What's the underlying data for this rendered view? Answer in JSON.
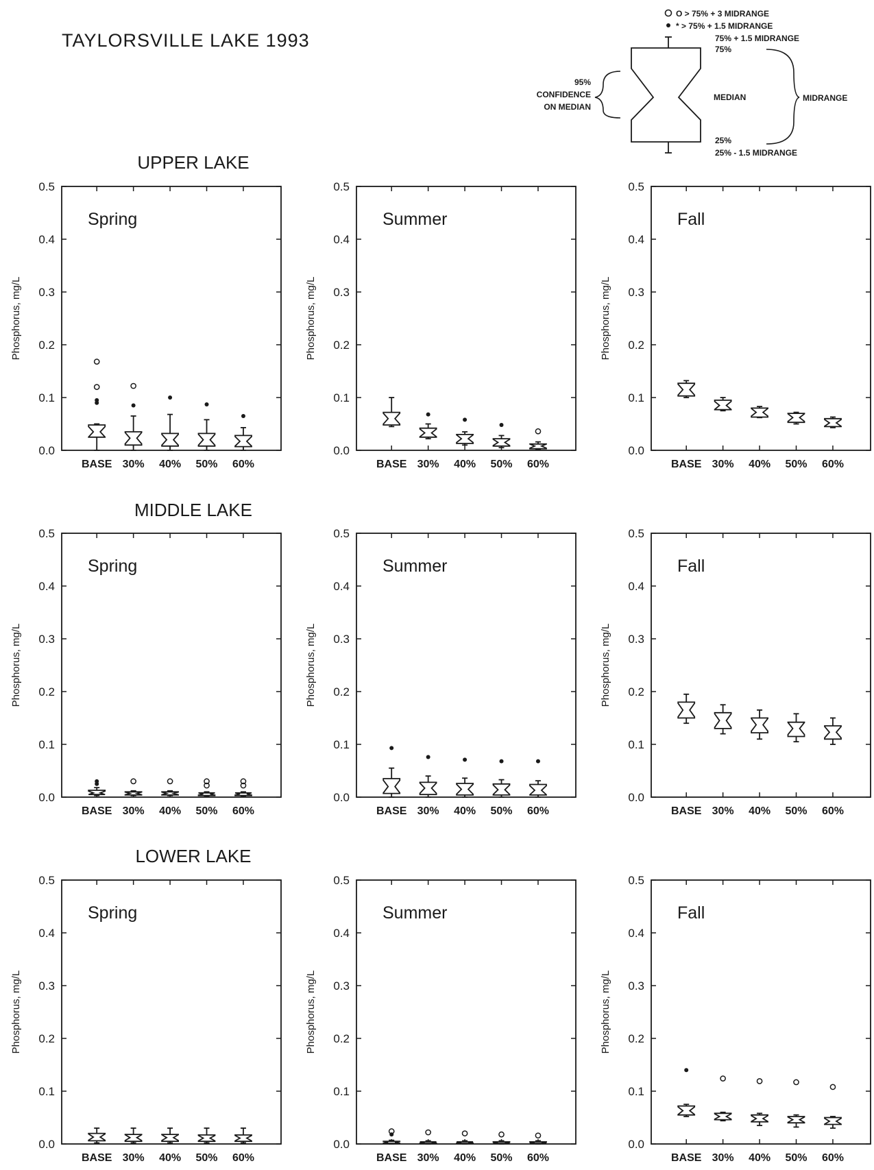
{
  "title": "TAYLORSVILLE LAKE 1993",
  "legend": {
    "outlier_far": "O > 75% + 3 MIDRANGE",
    "outlier_near": "* > 75% + 1.5 MIDRANGE",
    "whisker_top": "75% + 1.5 MIDRANGE",
    "q3": "75%",
    "ci_line1": "95%",
    "ci_line2": "CONFIDENCE",
    "ci_line3": "ON MEDIAN",
    "median": "MEDIAN",
    "midrange": "MIDRANGE",
    "q1": "25%",
    "whisker_bottom": "25% - 1.5 MIDRANGE"
  },
  "sections": [
    "UPPER LAKE",
    "MIDDLE LAKE",
    "LOWER LAKE"
  ],
  "colors": {
    "ink": "#1a1a1a",
    "background": "#ffffff"
  },
  "chart_data": [
    {
      "type": "box",
      "section": "UPPER LAKE",
      "season": "Spring",
      "ylabel": "Phosphorus, mg/L",
      "ylim": [
        0,
        0.5
      ],
      "yticks": [
        "0.0",
        "0.1",
        "0.2",
        "0.3",
        "0.4",
        "0.5"
      ],
      "categories": [
        "BASE",
        "30%",
        "40%",
        "50%",
        "60%"
      ],
      "boxes": [
        {
          "q1": 0.025,
          "median": 0.035,
          "q3": 0.048,
          "wlo": 0.0,
          "whi": 0.05,
          "out_near": [
            0.09,
            0.095
          ],
          "out_far": [
            0.12,
            0.168
          ]
        },
        {
          "q1": 0.01,
          "median": 0.023,
          "q3": 0.035,
          "wlo": 0.0,
          "whi": 0.065,
          "out_near": [
            0.085
          ],
          "out_far": [
            0.122
          ]
        },
        {
          "q1": 0.008,
          "median": 0.02,
          "q3": 0.032,
          "wlo": 0.0,
          "whi": 0.068,
          "out_near": [
            0.1
          ],
          "out_far": []
        },
        {
          "q1": 0.008,
          "median": 0.02,
          "q3": 0.032,
          "wlo": 0.0,
          "whi": 0.058,
          "out_near": [
            0.087
          ],
          "out_far": []
        },
        {
          "q1": 0.007,
          "median": 0.017,
          "q3": 0.028,
          "wlo": 0.0,
          "whi": 0.043,
          "out_near": [
            0.065
          ],
          "out_far": []
        }
      ]
    },
    {
      "type": "box",
      "section": "UPPER LAKE",
      "season": "Summer",
      "ylabel": "Phosphorus, mg/L",
      "ylim": [
        0,
        0.5
      ],
      "yticks": [
        "0.0",
        "0.1",
        "0.2",
        "0.3",
        "0.4",
        "0.5"
      ],
      "categories": [
        "BASE",
        "30%",
        "40%",
        "50%",
        "60%"
      ],
      "boxes": [
        {
          "q1": 0.048,
          "median": 0.06,
          "q3": 0.072,
          "wlo": 0.045,
          "whi": 0.1,
          "out_near": [],
          "out_far": []
        },
        {
          "q1": 0.025,
          "median": 0.033,
          "q3": 0.042,
          "wlo": 0.022,
          "whi": 0.05,
          "out_near": [
            0.068
          ],
          "out_far": []
        },
        {
          "q1": 0.013,
          "median": 0.022,
          "q3": 0.03,
          "wlo": 0.01,
          "whi": 0.035,
          "out_near": [
            0.058
          ],
          "out_far": []
        },
        {
          "q1": 0.008,
          "median": 0.015,
          "q3": 0.022,
          "wlo": 0.005,
          "whi": 0.028,
          "out_near": [
            0.048
          ],
          "out_far": []
        },
        {
          "q1": 0.003,
          "median": 0.008,
          "q3": 0.012,
          "wlo": 0.001,
          "whi": 0.016,
          "out_near": [],
          "out_far": [
            0.036
          ]
        }
      ]
    },
    {
      "type": "box",
      "section": "UPPER LAKE",
      "season": "Fall",
      "ylabel": "Phosphorus, mg/L",
      "ylim": [
        0,
        0.5
      ],
      "yticks": [
        "0.0",
        "0.1",
        "0.2",
        "0.3",
        "0.4",
        "0.5"
      ],
      "categories": [
        "BASE",
        "30%",
        "40%",
        "50%",
        "60%"
      ],
      "boxes": [
        {
          "q1": 0.103,
          "median": 0.115,
          "q3": 0.127,
          "wlo": 0.1,
          "whi": 0.132,
          "out_near": [],
          "out_far": []
        },
        {
          "q1": 0.077,
          "median": 0.085,
          "q3": 0.095,
          "wlo": 0.075,
          "whi": 0.1,
          "out_near": [],
          "out_far": []
        },
        {
          "q1": 0.063,
          "median": 0.072,
          "q3": 0.08,
          "wlo": 0.062,
          "whi": 0.083,
          "out_near": [],
          "out_far": []
        },
        {
          "q1": 0.053,
          "median": 0.062,
          "q3": 0.07,
          "wlo": 0.05,
          "whi": 0.072,
          "out_near": [],
          "out_far": []
        },
        {
          "q1": 0.045,
          "median": 0.052,
          "q3": 0.06,
          "wlo": 0.043,
          "whi": 0.063,
          "out_near": [],
          "out_far": []
        }
      ]
    },
    {
      "type": "box",
      "section": "MIDDLE LAKE",
      "season": "Spring",
      "ylabel": "Phosphorus, mg/L",
      "ylim": [
        0,
        0.5
      ],
      "yticks": [
        "0.0",
        "0.1",
        "0.2",
        "0.3",
        "0.4",
        "0.5"
      ],
      "categories": [
        "BASE",
        "30%",
        "40%",
        "50%",
        "60%"
      ],
      "boxes": [
        {
          "q1": 0.005,
          "median": 0.008,
          "q3": 0.013,
          "wlo": 0.003,
          "whi": 0.018,
          "out_near": [
            0.025,
            0.03
          ],
          "out_far": []
        },
        {
          "q1": 0.004,
          "median": 0.007,
          "q3": 0.01,
          "wlo": 0.003,
          "whi": 0.012,
          "out_near": [],
          "out_far": [
            0.03
          ]
        },
        {
          "q1": 0.004,
          "median": 0.007,
          "q3": 0.01,
          "wlo": 0.003,
          "whi": 0.012,
          "out_near": [],
          "out_far": [
            0.03
          ]
        },
        {
          "q1": 0.003,
          "median": 0.006,
          "q3": 0.008,
          "wlo": 0.002,
          "whi": 0.01,
          "out_near": [],
          "out_far": [
            0.022,
            0.03
          ]
        },
        {
          "q1": 0.003,
          "median": 0.006,
          "q3": 0.008,
          "wlo": 0.002,
          "whi": 0.01,
          "out_near": [],
          "out_far": [
            0.022,
            0.03
          ]
        }
      ]
    },
    {
      "type": "box",
      "section": "MIDDLE LAKE",
      "season": "Summer",
      "ylabel": "Phosphorus, mg/L",
      "ylim": [
        0,
        0.5
      ],
      "yticks": [
        "0.0",
        "0.1",
        "0.2",
        "0.3",
        "0.4",
        "0.5"
      ],
      "categories": [
        "BASE",
        "30%",
        "40%",
        "50%",
        "60%"
      ],
      "boxes": [
        {
          "q1": 0.007,
          "median": 0.02,
          "q3": 0.035,
          "wlo": 0.0,
          "whi": 0.055,
          "out_near": [
            0.093
          ],
          "out_far": []
        },
        {
          "q1": 0.005,
          "median": 0.017,
          "q3": 0.028,
          "wlo": 0.0,
          "whi": 0.04,
          "out_near": [
            0.076
          ],
          "out_far": []
        },
        {
          "q1": 0.004,
          "median": 0.015,
          "q3": 0.026,
          "wlo": 0.0,
          "whi": 0.036,
          "out_near": [
            0.071
          ],
          "out_far": []
        },
        {
          "q1": 0.004,
          "median": 0.014,
          "q3": 0.025,
          "wlo": 0.0,
          "whi": 0.033,
          "out_near": [
            0.068
          ],
          "out_far": []
        },
        {
          "q1": 0.004,
          "median": 0.013,
          "q3": 0.024,
          "wlo": 0.0,
          "whi": 0.031,
          "out_near": [
            0.068
          ],
          "out_far": []
        }
      ]
    },
    {
      "type": "box",
      "section": "MIDDLE LAKE",
      "season": "Fall",
      "ylabel": "Phosphorus, mg/L",
      "ylim": [
        0,
        0.5
      ],
      "yticks": [
        "0.0",
        "0.1",
        "0.2",
        "0.3",
        "0.4",
        "0.5"
      ],
      "categories": [
        "BASE",
        "30%",
        "40%",
        "50%",
        "60%"
      ],
      "boxes": [
        {
          "q1": 0.15,
          "median": 0.165,
          "q3": 0.18,
          "wlo": 0.14,
          "whi": 0.195,
          "out_near": [],
          "out_far": []
        },
        {
          "q1": 0.13,
          "median": 0.145,
          "q3": 0.16,
          "wlo": 0.12,
          "whi": 0.175,
          "out_near": [],
          "out_far": []
        },
        {
          "q1": 0.122,
          "median": 0.137,
          "q3": 0.15,
          "wlo": 0.11,
          "whi": 0.165,
          "out_near": [],
          "out_far": []
        },
        {
          "q1": 0.115,
          "median": 0.13,
          "q3": 0.142,
          "wlo": 0.105,
          "whi": 0.158,
          "out_near": [],
          "out_far": []
        },
        {
          "q1": 0.11,
          "median": 0.123,
          "q3": 0.135,
          "wlo": 0.1,
          "whi": 0.15,
          "out_near": [],
          "out_far": []
        }
      ]
    },
    {
      "type": "box",
      "section": "LOWER LAKE",
      "season": "Spring",
      "ylabel": "Phosphorus, mg/L",
      "ylim": [
        0,
        0.5
      ],
      "yticks": [
        "0.0",
        "0.1",
        "0.2",
        "0.3",
        "0.4",
        "0.5"
      ],
      "categories": [
        "BASE",
        "30%",
        "40%",
        "50%",
        "60%"
      ],
      "boxes": [
        {
          "q1": 0.006,
          "median": 0.013,
          "q3": 0.02,
          "wlo": 0.002,
          "whi": 0.03,
          "out_near": [],
          "out_far": []
        },
        {
          "q1": 0.005,
          "median": 0.012,
          "q3": 0.018,
          "wlo": 0.002,
          "whi": 0.03,
          "out_near": [],
          "out_far": []
        },
        {
          "q1": 0.005,
          "median": 0.012,
          "q3": 0.018,
          "wlo": 0.002,
          "whi": 0.03,
          "out_near": [],
          "out_far": []
        },
        {
          "q1": 0.005,
          "median": 0.011,
          "q3": 0.017,
          "wlo": 0.002,
          "whi": 0.03,
          "out_near": [],
          "out_far": []
        },
        {
          "q1": 0.005,
          "median": 0.011,
          "q3": 0.017,
          "wlo": 0.002,
          "whi": 0.03,
          "out_near": [],
          "out_far": []
        }
      ]
    },
    {
      "type": "box",
      "section": "LOWER LAKE",
      "season": "Summer",
      "ylabel": "Phosphorus, mg/L",
      "ylim": [
        0,
        0.5
      ],
      "yticks": [
        "0.0",
        "0.1",
        "0.2",
        "0.3",
        "0.4",
        "0.5"
      ],
      "categories": [
        "BASE",
        "30%",
        "40%",
        "50%",
        "60%"
      ],
      "boxes": [
        {
          "q1": 0.001,
          "median": 0.003,
          "q3": 0.005,
          "wlo": 0.0,
          "whi": 0.007,
          "out_near": [
            0.018
          ],
          "out_far": [
            0.024
          ]
        },
        {
          "q1": 0.001,
          "median": 0.003,
          "q3": 0.004,
          "wlo": 0.0,
          "whi": 0.006,
          "out_near": [],
          "out_far": [
            0.022
          ]
        },
        {
          "q1": 0.001,
          "median": 0.003,
          "q3": 0.004,
          "wlo": 0.0,
          "whi": 0.006,
          "out_near": [],
          "out_far": [
            0.02
          ]
        },
        {
          "q1": 0.001,
          "median": 0.002,
          "q3": 0.004,
          "wlo": 0.0,
          "whi": 0.006,
          "out_near": [],
          "out_far": [
            0.018
          ]
        },
        {
          "q1": 0.001,
          "median": 0.002,
          "q3": 0.004,
          "wlo": 0.0,
          "whi": 0.006,
          "out_near": [],
          "out_far": [
            0.016
          ]
        }
      ]
    },
    {
      "type": "box",
      "section": "LOWER LAKE",
      "season": "Fall",
      "ylabel": "Phosphorus, mg/L",
      "ylim": [
        0,
        0.5
      ],
      "yticks": [
        "0.0",
        "0.1",
        "0.2",
        "0.3",
        "0.4",
        "0.5"
      ],
      "categories": [
        "BASE",
        "30%",
        "40%",
        "50%",
        "60%"
      ],
      "boxes": [
        {
          "q1": 0.055,
          "median": 0.063,
          "q3": 0.072,
          "wlo": 0.052,
          "whi": 0.075,
          "out_near": [
            0.14
          ],
          "out_far": []
        },
        {
          "q1": 0.046,
          "median": 0.052,
          "q3": 0.058,
          "wlo": 0.044,
          "whi": 0.06,
          "out_near": [],
          "out_far": [
            0.124
          ]
        },
        {
          "q1": 0.042,
          "median": 0.048,
          "q3": 0.055,
          "wlo": 0.035,
          "whi": 0.058,
          "out_near": [],
          "out_far": [
            0.119
          ]
        },
        {
          "q1": 0.04,
          "median": 0.046,
          "q3": 0.052,
          "wlo": 0.032,
          "whi": 0.055,
          "out_near": [],
          "out_far": [
            0.117
          ]
        },
        {
          "q1": 0.037,
          "median": 0.043,
          "q3": 0.05,
          "wlo": 0.03,
          "whi": 0.052,
          "out_near": [],
          "out_far": [
            0.108
          ]
        }
      ]
    }
  ]
}
